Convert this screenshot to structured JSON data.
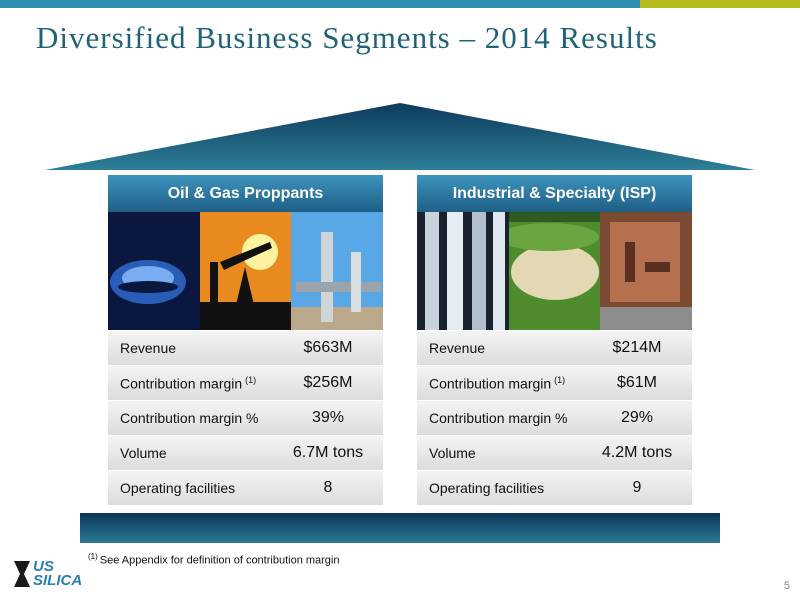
{
  "title": "Diversified Business Segments – 2014 Results",
  "segments": [
    {
      "header": "Oil & Gas Proppants",
      "rows": [
        {
          "label": "Revenue",
          "value": "$663M"
        },
        {
          "label": "Contribution margin",
          "note": "(1)",
          "value": "$256M"
        },
        {
          "label": "Contribution margin %",
          "value": "39%"
        },
        {
          "label": "Volume",
          "value": "6.7M tons"
        },
        {
          "label": "Operating facilities",
          "value": "8"
        }
      ]
    },
    {
      "header": "Industrial & Specialty (ISP)",
      "rows": [
        {
          "label": "Revenue",
          "value": "$214M"
        },
        {
          "label": "Contribution margin",
          "note": "(1)",
          "value": "$61M"
        },
        {
          "label": "Contribution margin %",
          "value": "29%"
        },
        {
          "label": "Volume",
          "value": "4.2M tons"
        },
        {
          "label": "Operating facilities",
          "value": "9"
        }
      ]
    }
  ],
  "footnote": {
    "marker": "(1)",
    "text": "See Appendix for definition of contribution margin"
  },
  "logo": {
    "line1": "US",
    "line2": "SILICA"
  },
  "page_number": "5"
}
